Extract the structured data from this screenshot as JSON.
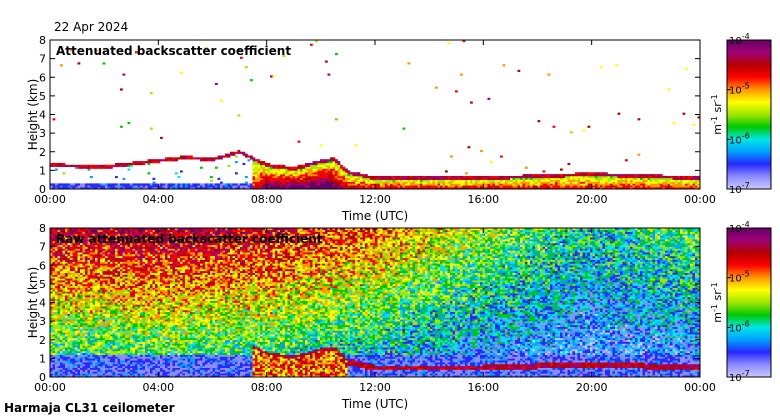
{
  "date": "22 Apr 2024",
  "footer": "Harmaja CL31 ceilometer",
  "colors": {
    "colormap": [
      "#c8c8ff",
      "#8c8cff",
      "#2828ff",
      "#00a0ff",
      "#00e6e6",
      "#00c800",
      "#a0e600",
      "#ffff00",
      "#ff9600",
      "#ff0000",
      "#b40000",
      "#a00078",
      "#640064"
    ],
    "background": "#ffffff"
  },
  "chart_data": [
    {
      "type": "heatmap",
      "title": "Attenuated backscatter coefficient",
      "xlabel": "Time (UTC)",
      "ylabel": "Height (km)",
      "x_ticks": [
        "00:00",
        "04:00",
        "08:00",
        "12:00",
        "16:00",
        "20:00",
        "00:00"
      ],
      "y_ticks": [
        "0",
        "1",
        "2",
        "3",
        "4",
        "5",
        "6",
        "7",
        "8"
      ],
      "xlim": [
        0,
        24
      ],
      "ylim": [
        0,
        8
      ],
      "colorbar": {
        "scale": "log",
        "range": [
          1e-07,
          0.0001
        ],
        "tick_labels": [
          {
            "base": "10",
            "exp": "-4"
          },
          {
            "base": "10",
            "exp": "-5"
          },
          {
            "base": "10",
            "exp": "-6"
          },
          {
            "base": "10",
            "exp": "-7"
          }
        ],
        "unit": {
          "m": "m",
          "m_exp": "-1",
          "sr": "sr",
          "sr_exp": "-1"
        }
      },
      "layers": {
        "cloud_base_km": [
          [
            0,
            1.2
          ],
          [
            1,
            1.15
          ],
          [
            2,
            1.1
          ],
          [
            5,
            1.6
          ],
          [
            6,
            1.5
          ],
          [
            7,
            1.9
          ],
          [
            8,
            1.2
          ],
          [
            9,
            1.0
          ],
          [
            10,
            1.4
          ],
          [
            10.5,
            1.5
          ],
          [
            11,
            0.8
          ],
          [
            12,
            0.5
          ],
          [
            16,
            0.5
          ],
          [
            20,
            0.7
          ],
          [
            24,
            0.5
          ]
        ],
        "low_layer_intensity": [
          [
            0,
            0.3
          ],
          [
            7.5,
            0.4
          ],
          [
            8,
            0.9
          ],
          [
            10.3,
            1.0
          ],
          [
            11,
            0.6
          ],
          [
            24,
            0.5
          ]
        ]
      }
    },
    {
      "type": "heatmap",
      "title": "Raw attenuated backscatter coefficient",
      "xlabel": "Time (UTC)",
      "ylabel": "Height (km)",
      "x_ticks": [
        "00:00",
        "04:00",
        "08:00",
        "12:00",
        "16:00",
        "20:00",
        "00:00"
      ],
      "y_ticks": [
        "0",
        "1",
        "2",
        "3",
        "4",
        "5",
        "6",
        "7",
        "8"
      ],
      "xlim": [
        0,
        24
      ],
      "ylim": [
        0,
        8
      ],
      "colorbar": {
        "scale": "log",
        "range": [
          1e-07,
          0.0001
        ],
        "tick_labels": [
          {
            "base": "10",
            "exp": "-4"
          },
          {
            "base": "10",
            "exp": "-5"
          },
          {
            "base": "10",
            "exp": "-6"
          },
          {
            "base": "10",
            "exp": "-7"
          }
        ],
        "unit": {
          "m": "m",
          "m_exp": "-1",
          "sr": "sr",
          "sr_exp": "-1"
        }
      },
      "noise_profile": [
        [
          0,
          0.9
        ],
        [
          4,
          0.95
        ],
        [
          8,
          0.9
        ],
        [
          12,
          0.75
        ],
        [
          16,
          0.55
        ],
        [
          20,
          0.4
        ],
        [
          24,
          0.5
        ]
      ]
    }
  ]
}
